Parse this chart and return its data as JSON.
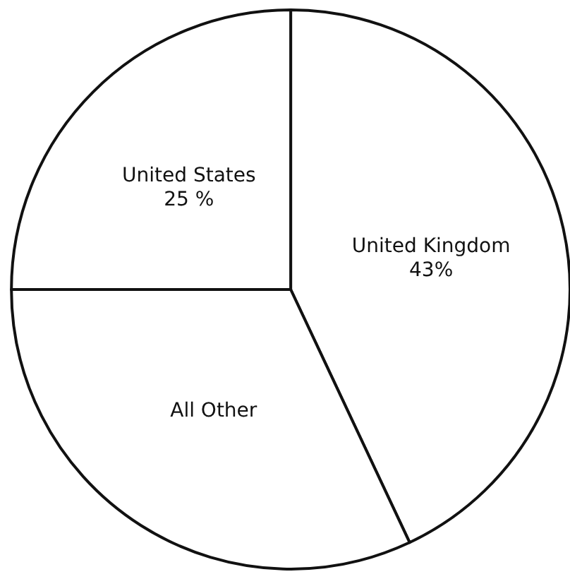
{
  "chart_data": {
    "type": "pie",
    "categories": [
      "United Kingdom",
      "All Other",
      "United States"
    ],
    "values": [
      43,
      32,
      25
    ],
    "colors": [
      "#ffffff",
      "#ffffff",
      "#ffffff"
    ],
    "value_labels": [
      "43%",
      null,
      "25 %"
    ]
  }
}
